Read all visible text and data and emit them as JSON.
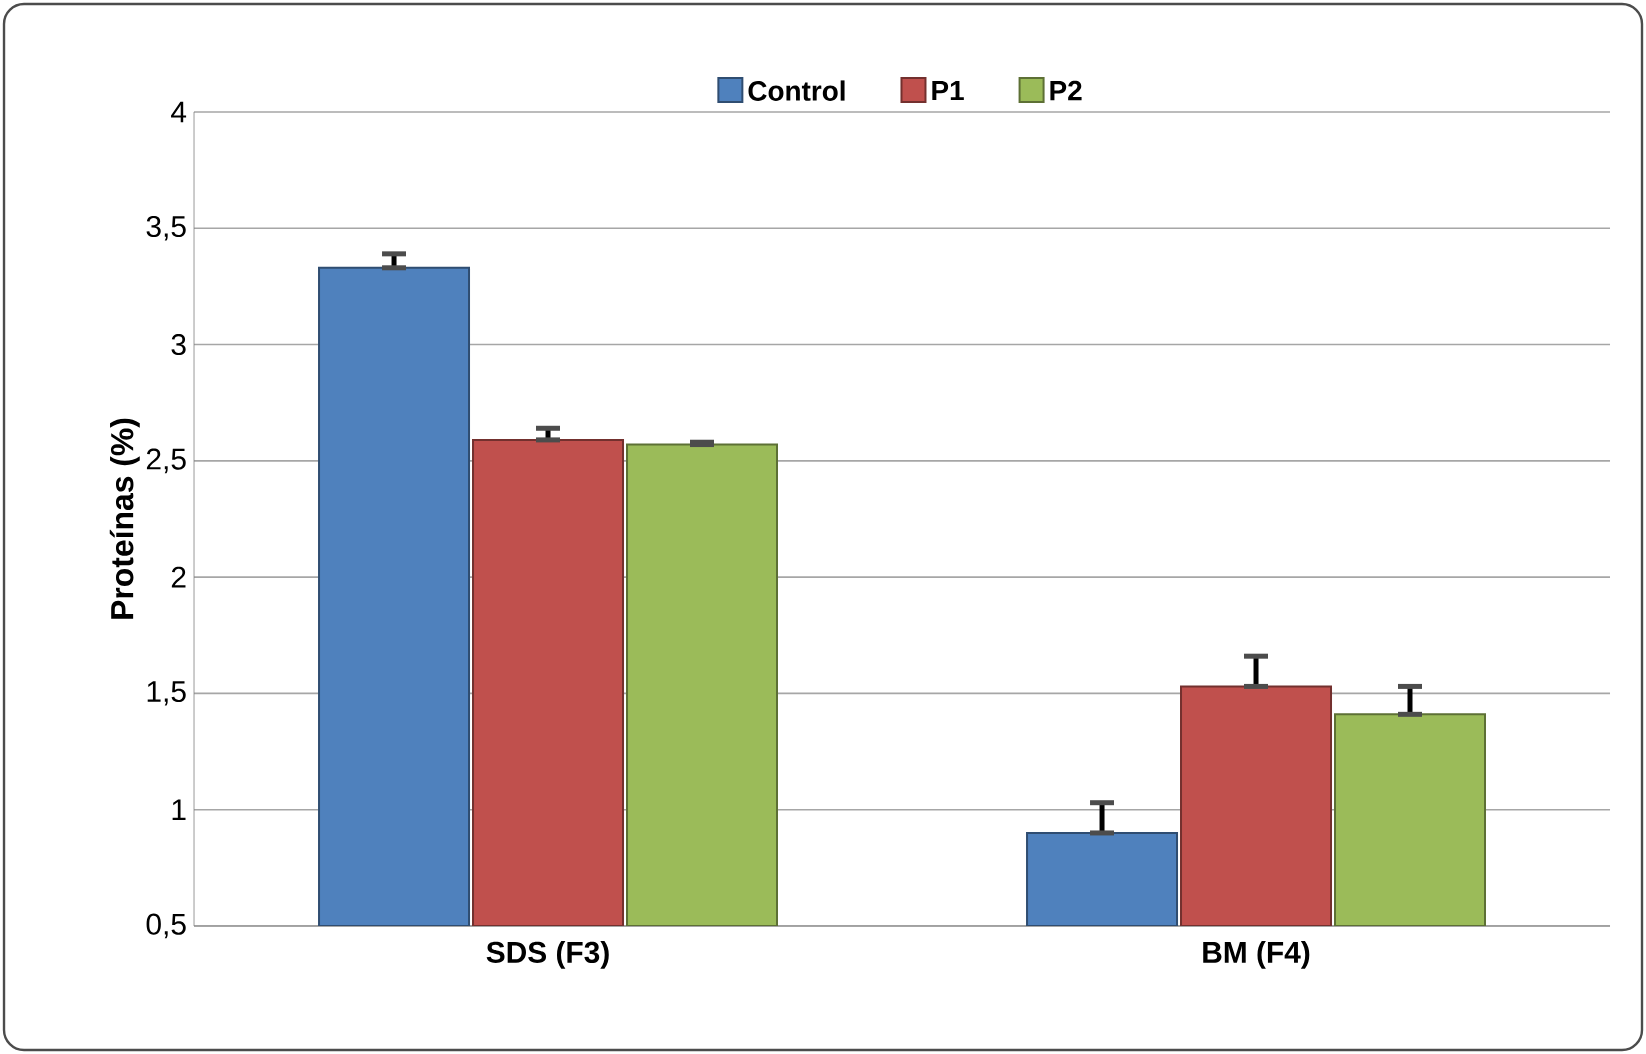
{
  "chart_data": {
    "type": "bar",
    "ylabel": "Proteínas (%)",
    "categories": [
      "SDS (F3)",
      "BM (F4)"
    ],
    "series": [
      {
        "name": "Control",
        "color": "#4f81bd",
        "values": [
          3.33,
          0.9
        ],
        "errors": [
          [
            3.33,
            3.39
          ],
          [
            0.9,
            1.03
          ]
        ]
      },
      {
        "name": "P1",
        "color": "#c0504d",
        "values": [
          2.59,
          1.53
        ],
        "errors": [
          [
            2.59,
            2.64
          ],
          [
            1.53,
            1.66
          ]
        ]
      },
      {
        "name": "P2",
        "color": "#9bbb59",
        "values": [
          2.57,
          1.41
        ],
        "errors": [
          [
            2.57,
            2.58
          ],
          [
            1.41,
            1.53
          ]
        ]
      }
    ],
    "ylim": [
      0.5,
      4
    ],
    "yticks": [
      {
        "value": 0.5,
        "label": "0,5"
      },
      1,
      {
        "value": 1.5,
        "label": "1,5"
      },
      2,
      {
        "value": 2.5,
        "label": "2,5"
      },
      3,
      {
        "value": 3.5,
        "label": "3,5"
      },
      4
    ],
    "grid": "y",
    "legend": "top"
  }
}
